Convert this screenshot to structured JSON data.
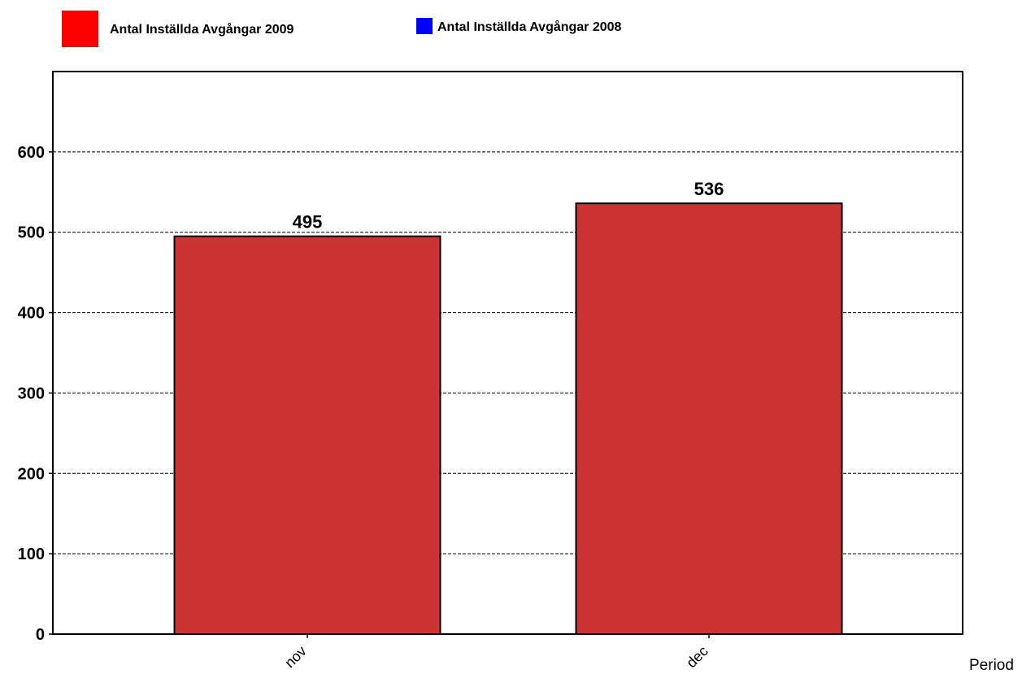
{
  "chart_data": {
    "type": "bar",
    "categories": [
      "nov",
      "dec"
    ],
    "series": [
      {
        "name": "Antal Inställda Avgångar 2009",
        "color": "#cc3333",
        "legend_color": "#ff0000",
        "values": [
          495,
          536
        ]
      },
      {
        "name": "Antal Inställda Avgångar 2008",
        "color": "#0000ff",
        "legend_color": "#0000ff",
        "values": [
          null,
          null
        ]
      }
    ],
    "data_labels": [
      "495",
      "536"
    ],
    "title": "",
    "xlabel": "Period",
    "ylabel": "",
    "ylim": [
      0,
      700
    ],
    "yticks": [
      0,
      100,
      200,
      300,
      400,
      500,
      600
    ],
    "ytick_labels": [
      "0",
      "100",
      "200",
      "300",
      "400",
      "500",
      "600"
    ],
    "grid": true,
    "grid_style": "dashed",
    "legend_position": "top-left"
  }
}
